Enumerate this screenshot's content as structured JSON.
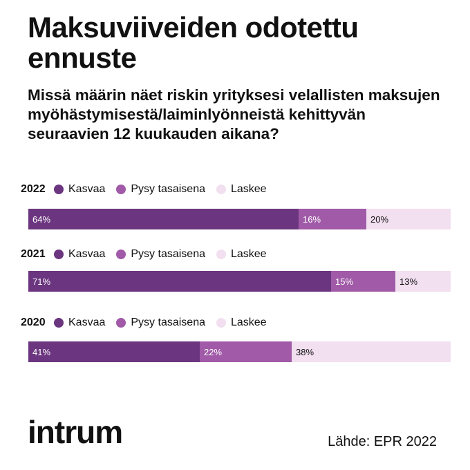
{
  "title": "Maksuviiveiden odotettu ennuste",
  "subtitle": "Missä määrin näet riskin yrityksesi velallisten maksujen myöhästymisestä/laiminlyönneistä kehittyvän seuraavien 12 kuukauden aikana?",
  "colors": {
    "kasvaa": "#6b357f",
    "pysy": "#a05aa7",
    "laskee": "#f2dff0"
  },
  "legend": [
    "Kasvaa",
    "Pysy tasaisena",
    "Laskee"
  ],
  "chart_data": {
    "type": "bar",
    "orientation": "horizontal-stacked",
    "unit": "%",
    "categories": [
      "2022",
      "2021",
      "2020"
    ],
    "series": [
      {
        "name": "Kasvaa",
        "values": [
          64,
          71,
          41
        ],
        "labels": [
          "64%",
          "71%",
          "41%"
        ]
      },
      {
        "name": "Pysy tasaisena",
        "values": [
          16,
          15,
          22
        ],
        "labels": [
          "16%",
          "15%",
          "22%"
        ]
      },
      {
        "name": "Laskee",
        "values": [
          20,
          13,
          38
        ],
        "labels": [
          "20%",
          "13%",
          "38%"
        ]
      }
    ]
  },
  "logo": "intrum",
  "source": "Lähde: EPR 2022"
}
